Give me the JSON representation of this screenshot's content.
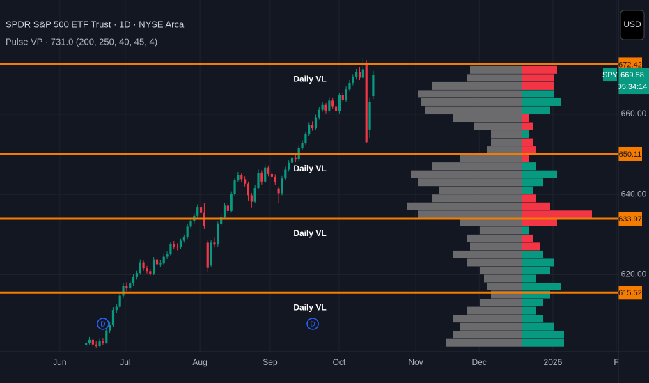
{
  "chart_data": {
    "type": "candlestick",
    "title": "SPDR S&P 500 ETF Trust · 1D · NYSE Arca",
    "indicator": "Pulse VP · 731.0 (200, 250, 40, 45, 4)",
    "currency": "USD",
    "symbol_tag": "SPY",
    "countdown": "05:34:14",
    "up_color": "#089981",
    "down_color": "#f23645",
    "grid": true,
    "xlim": [
      -25.5,
      157.6
    ],
    "xticks": [
      {
        "value": -7.8,
        "label": "Jun"
      },
      {
        "value": 11.6,
        "label": "Jul"
      },
      {
        "value": 33.7,
        "label": "Aug"
      },
      {
        "value": 54.5,
        "label": "Sep"
      },
      {
        "value": 74.9,
        "label": "Oct"
      },
      {
        "value": 97.6,
        "label": "Nov"
      },
      {
        "value": 116.4,
        "label": "Dec"
      },
      {
        "value": 138.2,
        "label": "2026"
      },
      {
        "value": 157.0,
        "label": "F"
      }
    ],
    "ylim": [
      600.82,
      688.46
    ],
    "yticks": [
      {
        "value": 660,
        "label": "660.00"
      },
      {
        "value": 640,
        "label": "640.00"
      },
      {
        "value": 620,
        "label": "620.00"
      }
    ],
    "x": [
      0,
      1,
      2,
      3,
      4,
      5,
      6,
      7,
      8,
      9,
      10,
      11,
      12,
      13,
      14,
      15,
      16,
      17,
      18,
      19,
      20,
      21,
      22,
      23,
      24,
      25,
      26,
      27,
      28,
      29,
      30,
      31,
      32,
      33,
      34,
      35,
      36,
      37,
      38,
      39,
      40,
      41,
      42,
      43,
      44,
      45,
      46,
      47,
      48,
      49,
      50,
      51,
      52,
      53,
      54,
      55,
      56,
      57,
      58,
      59,
      60,
      61,
      62,
      63,
      64,
      65,
      66,
      67,
      68,
      69,
      70,
      71,
      72,
      73,
      74,
      75,
      76,
      77,
      78,
      79,
      80,
      81,
      82,
      83,
      84,
      85
    ],
    "open": [
      602.4,
      603.0,
      603.8,
      602.6,
      602.2,
      603.4,
      603.0,
      606.1,
      607.5,
      611.2,
      612.0,
      614.8,
      617.3,
      616.6,
      617.9,
      619.4,
      620.4,
      623.1,
      621.6,
      620.9,
      620.2,
      623.8,
      622.6,
      622.8,
      624.5,
      625.1,
      627.6,
      627.0,
      626.9,
      628.5,
      629.3,
      632.0,
      633.4,
      634.7,
      636.9,
      635.4,
      628.0,
      622.5,
      628.0,
      627.5,
      632.6,
      634.3,
      637.2,
      635.9,
      640.1,
      643.5,
      644.9,
      643.8,
      642.7,
      639.8,
      638.2,
      641.6,
      645.3,
      643.2,
      646.7,
      645.1,
      644.4,
      641.5,
      640.3,
      644.0,
      646.2,
      647.9,
      649.1,
      648.7,
      651.6,
      652.8,
      655.0,
      657.4,
      656.5,
      659.2,
      661.1,
      662.3,
      660.9,
      663.4,
      662.0,
      660.7,
      664.8,
      663.6,
      666.2,
      667.8,
      669.2,
      670.5,
      669.1,
      672.4,
      656.2,
      664.5
    ],
    "high": [
      603.6,
      604.5,
      604.2,
      603.5,
      604.0,
      604.1,
      606.8,
      608.2,
      611.9,
      612.8,
      615.5,
      618.0,
      618.1,
      618.6,
      620.1,
      621.0,
      623.8,
      623.5,
      622.2,
      621.5,
      624.4,
      624.2,
      623.6,
      625.2,
      625.8,
      628.2,
      628.4,
      627.8,
      629.0,
      630.0,
      632.6,
      634.0,
      635.3,
      637.5,
      638.2,
      637.8,
      628.6,
      628.6,
      629.2,
      633.2,
      635.0,
      637.9,
      638.0,
      640.8,
      644.1,
      645.6,
      645.3,
      644.5,
      643.2,
      640.4,
      642.3,
      646.2,
      646.0,
      647.4,
      647.2,
      645.8,
      645.0,
      642.0,
      644.6,
      646.9,
      648.5,
      649.8,
      650.0,
      652.3,
      653.5,
      655.7,
      658.0,
      658.2,
      659.9,
      661.8,
      663.0,
      662.8,
      664.1,
      664.0,
      662.6,
      665.3,
      665.5,
      666.9,
      668.5,
      670.0,
      671.3,
      671.8,
      673.9,
      673.5,
      664.0,
      670.8
    ],
    "low": [
      601.8,
      602.6,
      602.0,
      601.7,
      601.9,
      602.5,
      602.8,
      605.5,
      607.0,
      610.4,
      611.6,
      614.2,
      615.9,
      616.0,
      617.2,
      618.8,
      620.0,
      621.0,
      620.3,
      619.6,
      619.9,
      622.0,
      621.9,
      622.3,
      623.9,
      624.8,
      626.3,
      626.1,
      626.4,
      628.0,
      628.9,
      631.5,
      632.8,
      634.2,
      634.8,
      631.4,
      620.8,
      622.0,
      626.8,
      627.0,
      632.0,
      633.8,
      635.2,
      635.5,
      639.6,
      643.0,
      643.1,
      642.0,
      638.5,
      636.8,
      637.9,
      641.2,
      642.5,
      642.8,
      644.5,
      643.8,
      642.3,
      637.9,
      639.8,
      643.6,
      645.7,
      647.4,
      648.0,
      648.3,
      651.0,
      652.4,
      654.6,
      655.9,
      656.0,
      658.7,
      660.6,
      660.2,
      660.4,
      661.4,
      658.9,
      660.2,
      663.0,
      663.1,
      665.7,
      667.2,
      668.6,
      668.5,
      668.7,
      652.8,
      654.1,
      663.8
    ],
    "close": [
      603.0,
      603.8,
      602.6,
      602.2,
      603.4,
      603.0,
      606.1,
      607.5,
      611.2,
      612.0,
      614.8,
      617.3,
      616.6,
      617.9,
      619.4,
      620.4,
      623.1,
      621.6,
      620.9,
      620.2,
      623.8,
      622.6,
      622.8,
      624.5,
      625.1,
      627.6,
      627.0,
      626.9,
      628.5,
      629.3,
      632.0,
      633.4,
      634.7,
      636.9,
      635.4,
      632.1,
      621.7,
      628.0,
      627.5,
      632.6,
      634.3,
      637.2,
      635.9,
      640.1,
      643.5,
      644.9,
      643.8,
      642.7,
      639.8,
      638.2,
      641.6,
      645.3,
      643.2,
      646.7,
      645.1,
      644.4,
      643.0,
      640.3,
      644.0,
      646.2,
      647.9,
      649.1,
      648.7,
      651.6,
      652.8,
      655.0,
      657.4,
      656.5,
      659.2,
      661.1,
      662.3,
      660.9,
      663.4,
      662.0,
      660.7,
      664.8,
      663.6,
      666.2,
      667.8,
      669.2,
      670.5,
      669.1,
      671.2,
      653.0,
      663.1,
      669.88
    ],
    "levels": [
      672.42,
      650.11,
      633.97,
      615.52
    ],
    "level_label": "Daily VL",
    "level_color": "#f57c00",
    "markers": {
      "label": "D",
      "x": [
        5.0,
        67.1
      ],
      "color": "#2962ff"
    },
    "profile": {
      "bins": [
        602,
        604,
        606,
        608,
        610,
        612,
        614,
        616,
        618,
        620,
        622,
        624,
        626,
        628,
        630,
        632,
        634,
        636,
        638,
        640,
        642,
        644,
        646,
        648,
        650,
        652,
        654,
        656,
        658,
        660,
        662,
        664,
        666,
        668,
        670,
        672
      ],
      "volume": [
        110,
        100,
        90,
        100,
        80,
        60,
        45,
        50,
        55,
        60,
        80,
        100,
        75,
        80,
        60,
        90,
        150,
        165,
        130,
        120,
        150,
        160,
        130,
        90,
        50,
        45,
        45,
        70,
        100,
        140,
        145,
        150,
        130,
        80,
        75
      ],
      "volume_color": "#6b6b6e",
      "delta": [
        60,
        60,
        45,
        30,
        20,
        30,
        40,
        55,
        20,
        40,
        45,
        30,
        -25,
        -15,
        10,
        -50,
        -100,
        -40,
        -20,
        15,
        30,
        50,
        20,
        -10,
        -20,
        -15,
        10,
        -15,
        -10,
        40,
        55,
        45,
        -45,
        -45,
        -50
      ]
    }
  }
}
